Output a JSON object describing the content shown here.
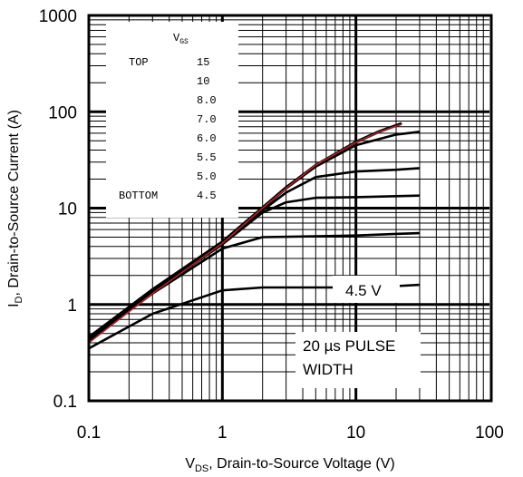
{
  "chart_data": {
    "type": "line",
    "x_scale": "log",
    "y_scale": "log",
    "xlim": [
      0.1,
      100
    ],
    "ylim": [
      0.1,
      1000
    ],
    "grid": true,
    "x_ticks": [
      "0.1",
      "1",
      "10",
      "100"
    ],
    "y_ticks": [
      "0.1",
      "1",
      "10",
      "100",
      "1000"
    ],
    "xlabel": {
      "main": "V",
      "sub": "DS",
      "rest": ", Drain-to-Source Voltage (V)"
    },
    "ylabel": {
      "main": "I",
      "sub": "D",
      "rest": ", Drain-to-Source Current (A)"
    },
    "legend": {
      "title_main": "V",
      "title_sub": "GS",
      "entries": [
        {
          "tag": "TOP",
          "value": "15"
        },
        {
          "tag": "",
          "value": "10"
        },
        {
          "tag": "",
          "value": "8.0"
        },
        {
          "tag": "",
          "value": "7.0"
        },
        {
          "tag": "",
          "value": "6.0"
        },
        {
          "tag": "",
          "value": "5.5"
        },
        {
          "tag": "",
          "value": "5.0"
        },
        {
          "tag": "BOTTOM",
          "value": "4.5"
        }
      ]
    },
    "annotations": [
      "4.5 V",
      "20 µs PULSE",
      "WIDTH"
    ],
    "series": [
      {
        "color": "#000000",
        "x": [
          0.1,
          0.3,
          1,
          2,
          5,
          10,
          20,
          30
        ],
        "y": [
          0.35,
          0.8,
          1.4,
          1.5,
          1.5,
          1.5,
          1.55,
          1.6
        ]
      },
      {
        "color": "#000000",
        "x": [
          0.1,
          0.3,
          1,
          2,
          5,
          10,
          20,
          30
        ],
        "y": [
          0.42,
          1.3,
          3.8,
          5.0,
          5.1,
          5.2,
          5.4,
          5.5
        ]
      },
      {
        "color": "#000000",
        "x": [
          0.1,
          0.3,
          1,
          2,
          3,
          5,
          10,
          20,
          30
        ],
        "y": [
          0.43,
          1.35,
          4.2,
          9.0,
          11.5,
          12.8,
          13.0,
          13.3,
          13.5
        ]
      },
      {
        "color": "#000000",
        "x": [
          0.1,
          0.3,
          1,
          2,
          3,
          5,
          10,
          20,
          30
        ],
        "y": [
          0.44,
          1.4,
          4.3,
          9.5,
          14.5,
          21,
          24,
          25,
          26
        ]
      },
      {
        "color": "#000000",
        "x": [
          0.1,
          0.3,
          1,
          2,
          3,
          5,
          10,
          20,
          30
        ],
        "y": [
          0.45,
          1.42,
          4.4,
          10,
          16,
          27,
          45,
          58,
          62
        ]
      },
      {
        "color": "#000000",
        "x": [
          0.1,
          0.3,
          1,
          2,
          3,
          5,
          10,
          15,
          22
        ],
        "y": [
          0.45,
          1.43,
          4.45,
          10,
          16,
          28,
          48,
          62,
          75
        ]
      },
      {
        "color": "#000000",
        "x": [
          0.1,
          0.3,
          1,
          2,
          3,
          5,
          10,
          15,
          22
        ],
        "y": [
          0.46,
          1.44,
          4.5,
          10.2,
          16.5,
          28,
          49,
          63,
          76
        ]
      },
      {
        "color": "#b22222",
        "x": [
          0.1,
          0.3,
          1,
          2,
          3,
          5,
          10,
          15,
          22
        ],
        "y": [
          0.4,
          1.3,
          4.3,
          10,
          16,
          28,
          48,
          62,
          74
        ]
      }
    ]
  }
}
